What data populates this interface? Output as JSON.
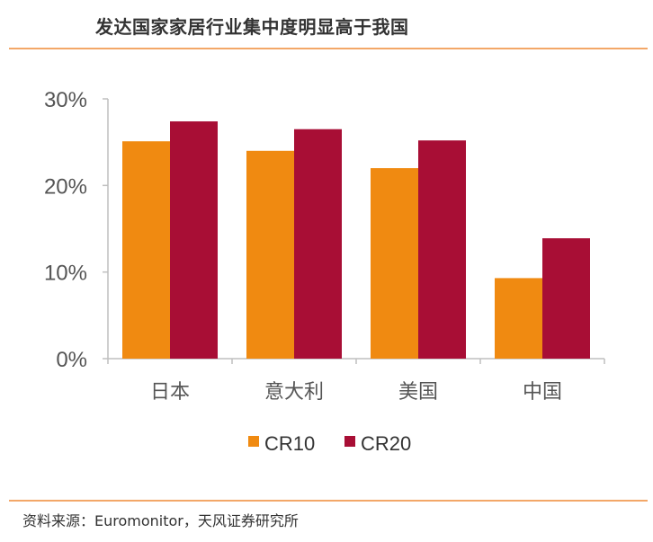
{
  "header": {
    "title": "发达国家家居行业集中度明显高于我国"
  },
  "footer": {
    "source": "资料来源：Euromonitor，天风证券研究所"
  },
  "colors": {
    "CR10": "#F08A11",
    "CR20": "#A80E35",
    "rule": "#F3A768",
    "axis": "#BFBFBF"
  },
  "chart_data": {
    "type": "bar",
    "categories": [
      "日本",
      "意大利",
      "美国",
      "中国"
    ],
    "series": [
      {
        "name": "CR10",
        "values": [
          25.1,
          24.0,
          22.0,
          9.3
        ]
      },
      {
        "name": "CR20",
        "values": [
          27.4,
          26.5,
          25.2,
          13.9
        ]
      }
    ],
    "ylim": [
      0,
      30
    ],
    "yticks": [
      "0%",
      "10%",
      "20%",
      "30%"
    ],
    "ytick_values": [
      0,
      10,
      20,
      30
    ],
    "legend_position": "bottom",
    "grid": false
  }
}
